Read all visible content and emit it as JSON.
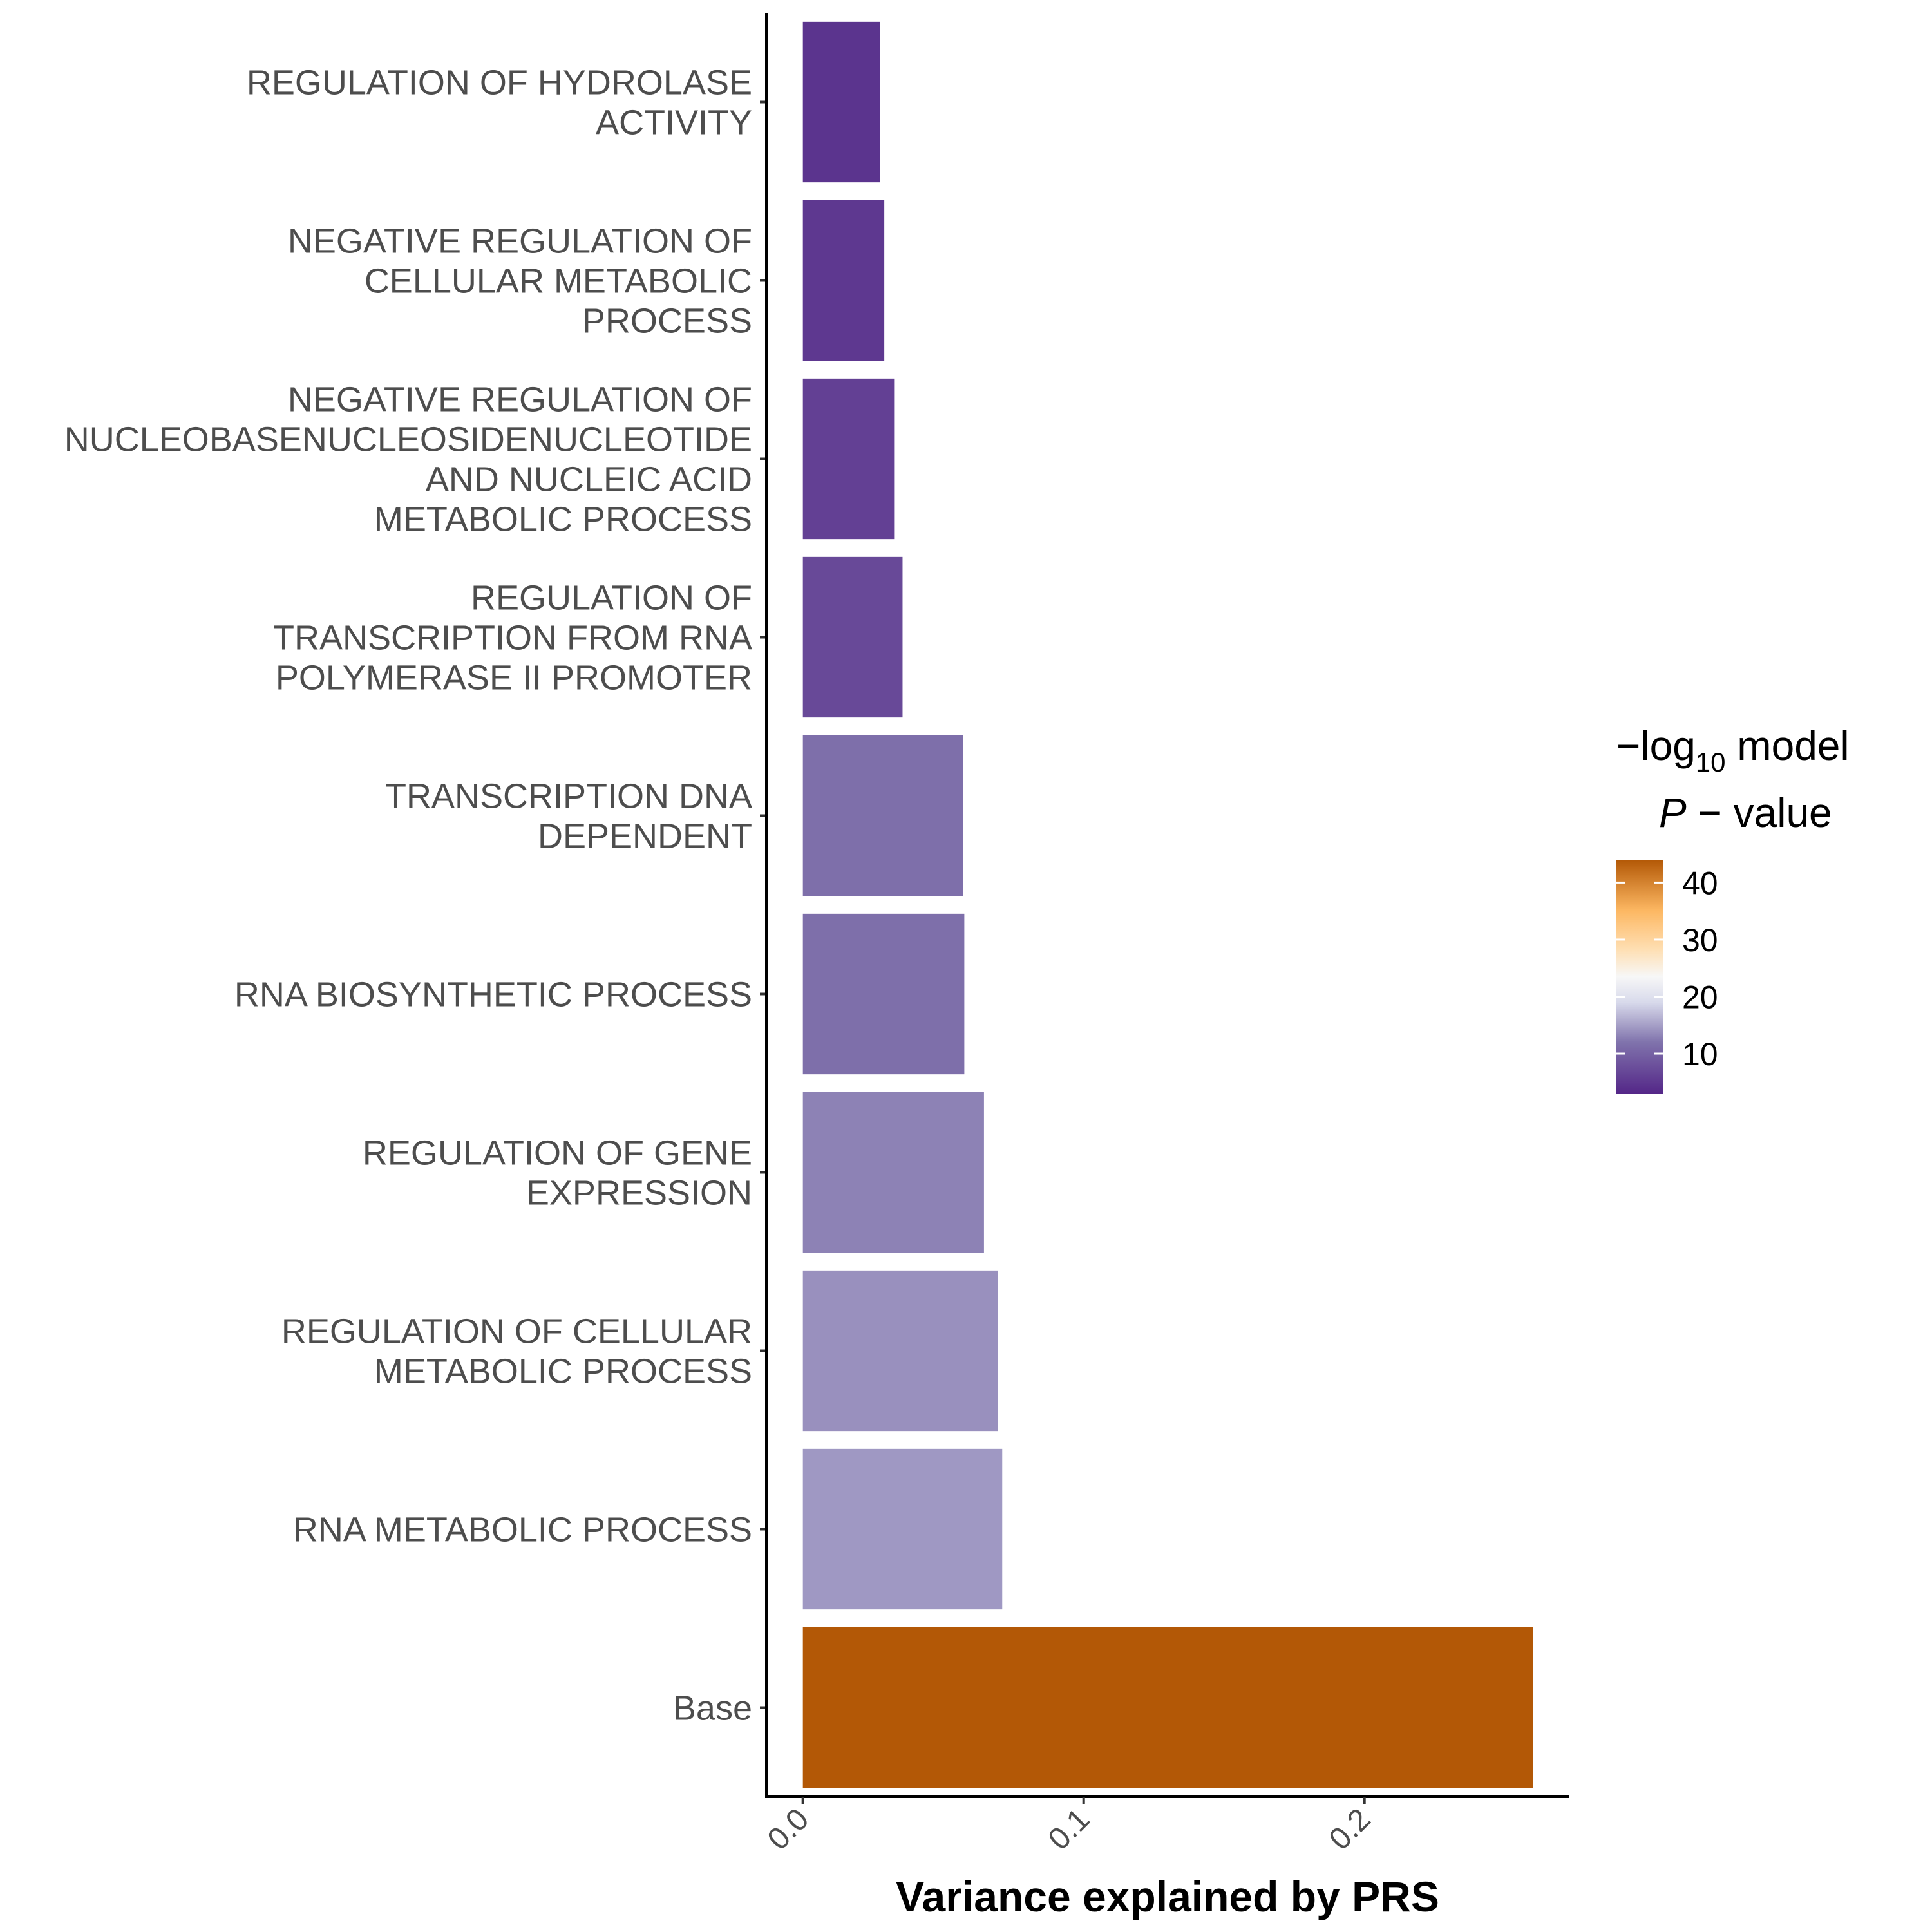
{
  "chart_data": {
    "type": "bar",
    "orientation": "horizontal",
    "xlabel": "Variance explained by PRS",
    "ylabel": "",
    "xlim": [
      -0.013,
      0.273
    ],
    "xticks": [
      {
        "value": 0.0,
        "label": "0.0"
      },
      {
        "value": 0.1,
        "label": "0.1"
      },
      {
        "value": 0.2,
        "label": "0.2"
      }
    ],
    "grid": false,
    "legend_position": "right",
    "bars": [
      {
        "category": "REGULATION OF HYDROLASE ACTIVITY",
        "lines": [
          "REGULATION OF HYDROLASE",
          "ACTIVITY"
        ],
        "value": 0.0275,
        "p_value": 4.5
      },
      {
        "category": "NEGATIVE REGULATION OF CELLULAR METABOLIC PROCESS",
        "lines": [
          "NEGATIVE REGULATION OF",
          "CELLULAR METABOLIC",
          "PROCESS"
        ],
        "value": 0.029,
        "p_value": 5.0
      },
      {
        "category": "NEGATIVE REGULATION OF NUCLEOBASENUCLEOSIDENUCLEOTIDE AND NUCLEIC ACID METABOLIC PROCESS",
        "lines": [
          "NEGATIVE REGULATION OF",
          "NUCLEOBASENUCLEOSIDENUCLEOTIDE",
          "AND NUCLEIC ACID",
          "METABOLIC PROCESS"
        ],
        "value": 0.0325,
        "p_value": 6.0
      },
      {
        "category": "REGULATION OF TRANSCRIPTION FROM RNA POLYMERASE II PROMOTER",
        "lines": [
          "REGULATION OF",
          "TRANSCRIPTION FROM RNA",
          "POLYMERASE II PROMOTER"
        ],
        "value": 0.0355,
        "p_value": 7.0
      },
      {
        "category": "TRANSCRIPTION DNA DEPENDENT",
        "lines": [
          "TRANSCRIPTION DNA",
          "DEPENDENT"
        ],
        "value": 0.057,
        "p_value": 11.5
      },
      {
        "category": "RNA BIOSYNTHETIC PROCESS",
        "lines": [
          "RNA BIOSYNTHETIC PROCESS"
        ],
        "value": 0.0575,
        "p_value": 11.5
      },
      {
        "category": "REGULATION OF GENE EXPRESSION",
        "lines": [
          "REGULATION OF GENE",
          "EXPRESSION"
        ],
        "value": 0.0645,
        "p_value": 13.0
      },
      {
        "category": "REGULATION OF CELLULAR METABOLIC PROCESS",
        "lines": [
          "REGULATION OF CELLULAR",
          "METABOLIC PROCESS"
        ],
        "value": 0.0695,
        "p_value": 14.0
      },
      {
        "category": "RNA METABOLIC PROCESS",
        "lines": [
          "RNA METABOLIC PROCESS"
        ],
        "value": 0.071,
        "p_value": 14.5
      },
      {
        "category": "Base",
        "lines": [
          "Base"
        ],
        "value": 0.26,
        "p_value": 44.0
      }
    ],
    "legend": {
      "title_line1_prefix": "−log",
      "title_line1_subscript": "10",
      "title_line1_suffix": " model",
      "title_line2_italic": "P",
      "title_line2_suffix": " − value",
      "range": [
        3,
        44
      ],
      "ticks": [
        {
          "value": 10,
          "label": "10"
        },
        {
          "value": 20,
          "label": "20"
        },
        {
          "value": 30,
          "label": "30"
        },
        {
          "value": 40,
          "label": "40"
        }
      ],
      "gradient": [
        {
          "value": 3,
          "color": "#542788"
        },
        {
          "value": 12,
          "color": "#8073ac"
        },
        {
          "value": 19,
          "color": "#d8daeb"
        },
        {
          "value": 23.5,
          "color": "#f7f7f7"
        },
        {
          "value": 28,
          "color": "#fee0b6"
        },
        {
          "value": 35,
          "color": "#fdb863"
        },
        {
          "value": 44,
          "color": "#b35806"
        }
      ]
    }
  }
}
